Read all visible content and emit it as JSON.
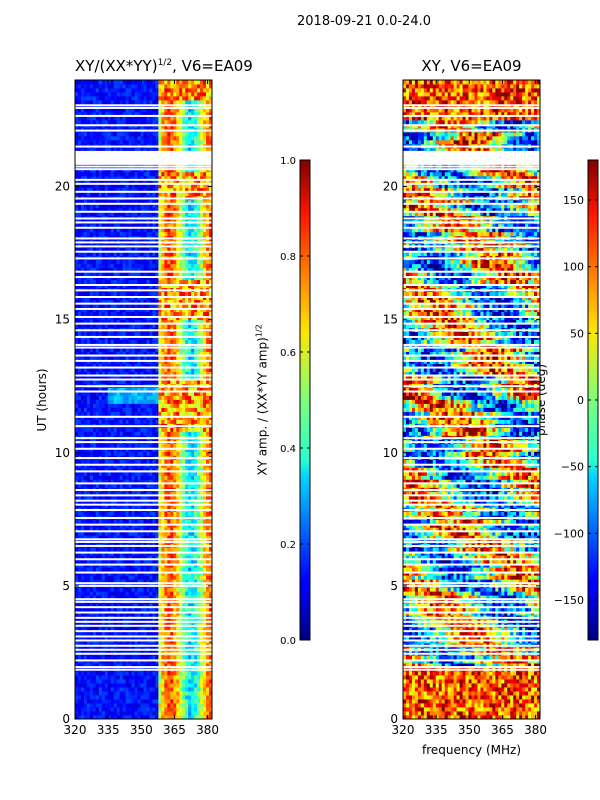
{
  "suptitle": "2018-09-21 0.0-24.0",
  "colors": {
    "stripe": "#ffffff",
    "frame": "#000000"
  },
  "chart_data": [
    {
      "type": "heatmap",
      "title": "XY/(XX*YY)^(1/2), V6=EA09",
      "title_prefix": "XY/(XX*YY)",
      "title_sup": "1/2",
      "title_suffix": ", V6=EA09",
      "xlabel": "",
      "ylabel": "UT (hours)",
      "xlim": [
        320,
        382
      ],
      "ylim": [
        0,
        24
      ],
      "xticks": [
        "320",
        "335",
        "350",
        "365",
        "380"
      ],
      "xtick_values": [
        320,
        335,
        350,
        365,
        380
      ],
      "yticks": [
        "0",
        "5",
        "10",
        "15",
        "20"
      ],
      "ytick_values": [
        0,
        5,
        10,
        15,
        20
      ],
      "colormap": "jet",
      "colorbar": {
        "label": "XY amp. / (XX*YY amp)^(1/2)",
        "label_prefix": "XY amp. / (XX*YY amp)",
        "label_sup": "1/2",
        "range": [
          0,
          1
        ],
        "ticks": [
          "0.0",
          "0.2",
          "0.4",
          "0.6",
          "0.8",
          "1.0"
        ],
        "tick_values": [
          0,
          0.2,
          0.4,
          0.6,
          0.8,
          1.0
        ]
      },
      "flagged_freq_start_mhz": 382,
      "description": "Low normalized amplitude (near 0) below ~358 MHz; values up to ~0.8 between ~358 and 382 MHz in vertical bands."
    },
    {
      "type": "heatmap",
      "title": "XY, V6=EA09",
      "xlabel": "frequency (MHz)",
      "ylabel": "",
      "xlim": [
        320,
        382
      ],
      "ylim": [
        0,
        24
      ],
      "xticks": [
        "320",
        "335",
        "350",
        "365",
        "380"
      ],
      "xtick_values": [
        320,
        335,
        350,
        365,
        380
      ],
      "yticks": [
        "0",
        "5",
        "10",
        "15",
        "20"
      ],
      "ytick_values": [
        0,
        5,
        10,
        15,
        20
      ],
      "colormap": "jet",
      "colorbar": {
        "label": "phase (deg)",
        "range": [
          -180,
          180
        ],
        "ticks": [
          "−150",
          "−100",
          "−50",
          "0",
          "50",
          "100",
          "150"
        ],
        "tick_values": [
          -150,
          -100,
          -50,
          0,
          50,
          100,
          150
        ]
      },
      "description": "Phase varies over full -180 to 180 range with horizontal banding in time."
    }
  ],
  "flagged_rows_ut_hours": [
    1.85,
    1.95,
    2.2,
    2.45,
    2.6,
    2.75,
    2.95,
    3.1,
    3.3,
    3.5,
    3.65,
    3.8,
    4.0,
    4.2,
    4.4,
    4.5,
    5.0,
    5.1,
    5.5,
    5.8,
    6.0,
    6.25,
    6.5,
    6.65,
    6.75,
    7.05,
    7.3,
    7.55,
    7.85,
    8.05,
    8.2,
    8.4,
    8.6,
    8.85,
    9.3,
    9.55,
    9.8,
    10.15,
    10.4,
    10.55,
    11.0,
    11.35,
    12.3,
    12.5,
    12.75,
    12.9,
    13.2,
    13.45,
    13.65,
    13.95,
    14.05,
    14.35,
    14.6,
    14.85,
    15.1,
    15.4,
    15.6,
    15.85,
    16.1,
    16.3,
    16.6,
    16.8,
    17.3,
    17.55,
    17.75,
    17.9,
    18.05,
    18.45,
    18.65,
    18.8,
    19.05,
    19.35,
    19.55,
    19.8,
    20.1,
    20.25,
    20.65,
    20.75,
    20.85,
    20.95,
    21.05,
    21.2,
    21.3,
    21.5,
    22.1,
    22.3,
    22.65,
    22.95,
    23.05
  ]
}
